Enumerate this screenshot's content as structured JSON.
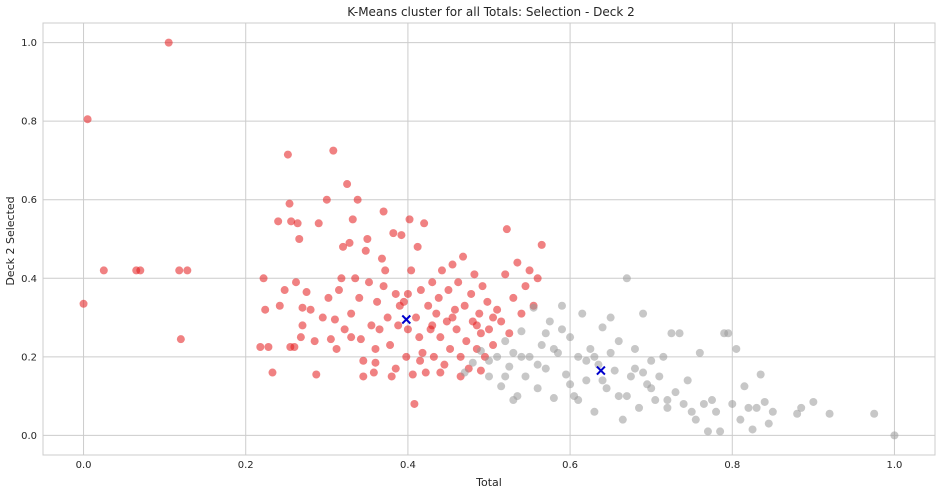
{
  "chart_data": {
    "type": "scatter",
    "title": "K-Means cluster for all Totals: Selection - Deck 2",
    "xlabel": "Total",
    "ylabel": "Deck 2 Selected",
    "xlim": [
      -0.05,
      1.05
    ],
    "ylim": [
      -0.05,
      1.05
    ],
    "xticks": [
      "0.0",
      "0.2",
      "0.4",
      "0.6",
      "0.8",
      "1.0"
    ],
    "yticks": [
      "0.0",
      "0.2",
      "0.4",
      "0.6",
      "0.8",
      "1.0"
    ],
    "grid": true,
    "colors": {
      "cluster_red": "#e41a1c",
      "cluster_gray": "#999999",
      "centroid": "#0000cc",
      "grid": "#cccccc",
      "background": "#ffffff"
    },
    "series": [
      {
        "color": "#e41a1c",
        "points": [
          [
            0.0,
            0.335
          ],
          [
            0.005,
            0.805
          ],
          [
            0.025,
            0.42
          ],
          [
            0.065,
            0.42
          ],
          [
            0.07,
            0.42
          ],
          [
            0.105,
            1.0
          ],
          [
            0.118,
            0.42
          ],
          [
            0.12,
            0.245
          ],
          [
            0.128,
            0.42
          ],
          [
            0.218,
            0.225
          ],
          [
            0.222,
            0.4
          ],
          [
            0.224,
            0.32
          ],
          [
            0.228,
            0.225
          ],
          [
            0.233,
            0.16
          ],
          [
            0.24,
            0.545
          ],
          [
            0.242,
            0.33
          ],
          [
            0.248,
            0.37
          ],
          [
            0.252,
            0.715
          ],
          [
            0.254,
            0.59
          ],
          [
            0.256,
            0.545
          ],
          [
            0.26,
            0.225
          ],
          [
            0.262,
            0.39
          ],
          [
            0.264,
            0.54
          ],
          [
            0.266,
            0.5
          ],
          [
            0.268,
            0.25
          ],
          [
            0.27,
            0.325
          ],
          [
            0.275,
            0.365
          ],
          [
            0.28,
            0.32
          ],
          [
            0.285,
            0.24
          ],
          [
            0.287,
            0.155
          ],
          [
            0.29,
            0.54
          ],
          [
            0.295,
            0.3
          ],
          [
            0.3,
            0.6
          ],
          [
            0.302,
            0.35
          ],
          [
            0.305,
            0.245
          ],
          [
            0.308,
            0.725
          ],
          [
            0.31,
            0.295
          ],
          [
            0.312,
            0.22
          ],
          [
            0.315,
            0.37
          ],
          [
            0.318,
            0.4
          ],
          [
            0.32,
            0.48
          ],
          [
            0.322,
            0.27
          ],
          [
            0.325,
            0.64
          ],
          [
            0.328,
            0.49
          ],
          [
            0.33,
            0.25
          ],
          [
            0.332,
            0.55
          ],
          [
            0.335,
            0.4
          ],
          [
            0.338,
            0.6
          ],
          [
            0.34,
            0.35
          ],
          [
            0.342,
            0.245
          ],
          [
            0.345,
            0.19
          ],
          [
            0.348,
            0.47
          ],
          [
            0.35,
            0.5
          ],
          [
            0.352,
            0.39
          ],
          [
            0.355,
            0.28
          ],
          [
            0.358,
            0.16
          ],
          [
            0.36,
            0.22
          ],
          [
            0.362,
            0.34
          ],
          [
            0.365,
            0.27
          ],
          [
            0.368,
            0.45
          ],
          [
            0.37,
            0.57
          ],
          [
            0.372,
            0.42
          ],
          [
            0.375,
            0.3
          ],
          [
            0.378,
            0.23
          ],
          [
            0.38,
            0.15
          ],
          [
            0.382,
            0.515
          ],
          [
            0.385,
            0.36
          ],
          [
            0.388,
            0.28
          ],
          [
            0.39,
            0.33
          ],
          [
            0.392,
            0.51
          ],
          [
            0.395,
            0.34
          ],
          [
            0.398,
            0.2
          ],
          [
            0.4,
            0.27
          ],
          [
            0.402,
            0.55
          ],
          [
            0.404,
            0.42
          ],
          [
            0.406,
            0.155
          ],
          [
            0.408,
            0.08
          ],
          [
            0.41,
            0.3
          ],
          [
            0.412,
            0.48
          ],
          [
            0.414,
            0.25
          ],
          [
            0.416,
            0.37
          ],
          [
            0.418,
            0.21
          ],
          [
            0.42,
            0.54
          ],
          [
            0.422,
            0.16
          ],
          [
            0.425,
            0.33
          ],
          [
            0.428,
            0.27
          ],
          [
            0.43,
            0.39
          ],
          [
            0.432,
            0.2
          ],
          [
            0.435,
            0.31
          ],
          [
            0.438,
            0.35
          ],
          [
            0.44,
            0.25
          ],
          [
            0.442,
            0.42
          ],
          [
            0.445,
            0.18
          ],
          [
            0.448,
            0.29
          ],
          [
            0.45,
            0.37
          ],
          [
            0.452,
            0.22
          ],
          [
            0.455,
            0.435
          ],
          [
            0.458,
            0.32
          ],
          [
            0.46,
            0.27
          ],
          [
            0.462,
            0.39
          ],
          [
            0.465,
            0.2
          ],
          [
            0.468,
            0.455
          ],
          [
            0.47,
            0.33
          ],
          [
            0.472,
            0.24
          ],
          [
            0.475,
            0.17
          ],
          [
            0.478,
            0.36
          ],
          [
            0.48,
            0.29
          ],
          [
            0.482,
            0.41
          ],
          [
            0.485,
            0.22
          ],
          [
            0.488,
            0.31
          ],
          [
            0.49,
            0.26
          ],
          [
            0.492,
            0.38
          ],
          [
            0.495,
            0.2
          ],
          [
            0.498,
            0.34
          ],
          [
            0.5,
            0.27
          ],
          [
            0.505,
            0.23
          ],
          [
            0.51,
            0.32
          ],
          [
            0.515,
            0.29
          ],
          [
            0.52,
            0.41
          ],
          [
            0.522,
            0.525
          ],
          [
            0.525,
            0.26
          ],
          [
            0.53,
            0.35
          ],
          [
            0.535,
            0.44
          ],
          [
            0.54,
            0.31
          ],
          [
            0.545,
            0.38
          ],
          [
            0.55,
            0.42
          ],
          [
            0.555,
            0.33
          ],
          [
            0.56,
            0.4
          ],
          [
            0.565,
            0.485
          ],
          [
            0.345,
            0.15
          ],
          [
            0.36,
            0.185
          ],
          [
            0.385,
            0.17
          ],
          [
            0.415,
            0.19
          ],
          [
            0.44,
            0.16
          ],
          [
            0.465,
            0.15
          ],
          [
            0.49,
            0.165
          ],
          [
            0.33,
            0.31
          ],
          [
            0.37,
            0.38
          ],
          [
            0.4,
            0.36
          ],
          [
            0.43,
            0.28
          ],
          [
            0.455,
            0.3
          ],
          [
            0.485,
            0.28
          ],
          [
            0.505,
            0.3
          ],
          [
            0.27,
            0.28
          ],
          [
            0.255,
            0.225
          ]
        ]
      },
      {
        "color": "#999999",
        "points": [
          [
            0.47,
            0.16
          ],
          [
            0.48,
            0.185
          ],
          [
            0.49,
            0.215
          ],
          [
            0.5,
            0.15
          ],
          [
            0.51,
            0.2
          ],
          [
            0.515,
            0.125
          ],
          [
            0.52,
            0.24
          ],
          [
            0.525,
            0.175
          ],
          [
            0.53,
            0.21
          ],
          [
            0.535,
            0.1
          ],
          [
            0.54,
            0.265
          ],
          [
            0.545,
            0.15
          ],
          [
            0.55,
            0.2
          ],
          [
            0.555,
            0.325
          ],
          [
            0.56,
            0.12
          ],
          [
            0.565,
            0.23
          ],
          [
            0.57,
            0.17
          ],
          [
            0.575,
            0.29
          ],
          [
            0.58,
            0.095
          ],
          [
            0.585,
            0.21
          ],
          [
            0.59,
            0.33
          ],
          [
            0.595,
            0.155
          ],
          [
            0.6,
            0.25
          ],
          [
            0.605,
            0.1
          ],
          [
            0.61,
            0.2
          ],
          [
            0.615,
            0.31
          ],
          [
            0.62,
            0.14
          ],
          [
            0.625,
            0.22
          ],
          [
            0.63,
            0.06
          ],
          [
            0.635,
            0.18
          ],
          [
            0.64,
            0.275
          ],
          [
            0.645,
            0.12
          ],
          [
            0.65,
            0.21
          ],
          [
            0.655,
            0.165
          ],
          [
            0.66,
            0.1
          ],
          [
            0.665,
            0.04
          ],
          [
            0.67,
            0.4
          ],
          [
            0.675,
            0.15
          ],
          [
            0.68,
            0.22
          ],
          [
            0.685,
            0.07
          ],
          [
            0.69,
            0.31
          ],
          [
            0.695,
            0.13
          ],
          [
            0.7,
            0.19
          ],
          [
            0.705,
            0.09
          ],
          [
            0.71,
            0.15
          ],
          [
            0.715,
            0.2
          ],
          [
            0.72,
            0.07
          ],
          [
            0.725,
            0.26
          ],
          [
            0.73,
            0.11
          ],
          [
            0.735,
            0.26
          ],
          [
            0.74,
            0.08
          ],
          [
            0.745,
            0.14
          ],
          [
            0.75,
            0.06
          ],
          [
            0.755,
            0.04
          ],
          [
            0.76,
            0.21
          ],
          [
            0.765,
            0.08
          ],
          [
            0.77,
            0.01
          ],
          [
            0.775,
            0.09
          ],
          [
            0.78,
            0.06
          ],
          [
            0.785,
            0.01
          ],
          [
            0.79,
            0.26
          ],
          [
            0.795,
            0.26
          ],
          [
            0.8,
            0.08
          ],
          [
            0.805,
            0.22
          ],
          [
            0.81,
            0.04
          ],
          [
            0.815,
            0.125
          ],
          [
            0.82,
            0.07
          ],
          [
            0.825,
            0.015
          ],
          [
            0.83,
            0.07
          ],
          [
            0.835,
            0.155
          ],
          [
            0.84,
            0.085
          ],
          [
            0.845,
            0.03
          ],
          [
            0.85,
            0.06
          ],
          [
            0.88,
            0.055
          ],
          [
            0.885,
            0.07
          ],
          [
            0.9,
            0.085
          ],
          [
            0.92,
            0.055
          ],
          [
            0.975,
            0.055
          ],
          [
            1.0,
            0.0
          ],
          [
            0.52,
            0.15
          ],
          [
            0.54,
            0.2
          ],
          [
            0.56,
            0.18
          ],
          [
            0.58,
            0.22
          ],
          [
            0.6,
            0.13
          ],
          [
            0.62,
            0.19
          ],
          [
            0.64,
            0.14
          ],
          [
            0.66,
            0.24
          ],
          [
            0.68,
            0.17
          ],
          [
            0.7,
            0.12
          ],
          [
            0.5,
            0.19
          ],
          [
            0.53,
            0.09
          ],
          [
            0.57,
            0.26
          ],
          [
            0.59,
            0.27
          ],
          [
            0.61,
            0.09
          ],
          [
            0.63,
            0.2
          ],
          [
            0.65,
            0.3
          ],
          [
            0.67,
            0.1
          ],
          [
            0.69,
            0.16
          ],
          [
            0.72,
            0.09
          ]
        ]
      }
    ],
    "centroids": [
      [
        0.398,
        0.295
      ],
      [
        0.638,
        0.165
      ]
    ]
  }
}
